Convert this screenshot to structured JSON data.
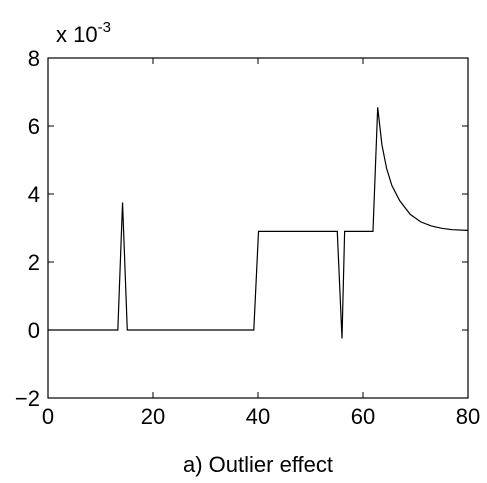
{
  "chart_data": {
    "type": "line",
    "title": "",
    "xlabel": "a) Outlier effect",
    "ylabel": "",
    "y_multiplier_label": "x 10",
    "y_multiplier_exponent": "-3",
    "xlim": [
      0,
      80
    ],
    "ylim": [
      -2,
      8
    ],
    "xticks": [
      0,
      20,
      40,
      60,
      80
    ],
    "yticks": [
      -2,
      0,
      2,
      4,
      6,
      8
    ],
    "xtick_labels": [
      "0",
      "20",
      "40",
      "60",
      "80"
    ],
    "ytick_labels": [
      "−2",
      "0",
      "2",
      "4",
      "6",
      "8"
    ],
    "grid": false,
    "line_color": "#000000",
    "series": [
      {
        "x": [
          0,
          13.3,
          14.2,
          15.1,
          39.2,
          40.1,
          55.1,
          56.0,
          56.5,
          61.9,
          62.8,
          63.6,
          64.5,
          65.5,
          67,
          69,
          71,
          73,
          75,
          77,
          80
        ],
        "y": [
          0,
          0,
          3.75,
          0,
          0,
          2.9,
          2.9,
          -0.25,
          2.9,
          2.9,
          6.55,
          5.45,
          4.75,
          4.25,
          3.8,
          3.4,
          3.18,
          3.06,
          2.99,
          2.95,
          2.93
        ]
      }
    ]
  }
}
